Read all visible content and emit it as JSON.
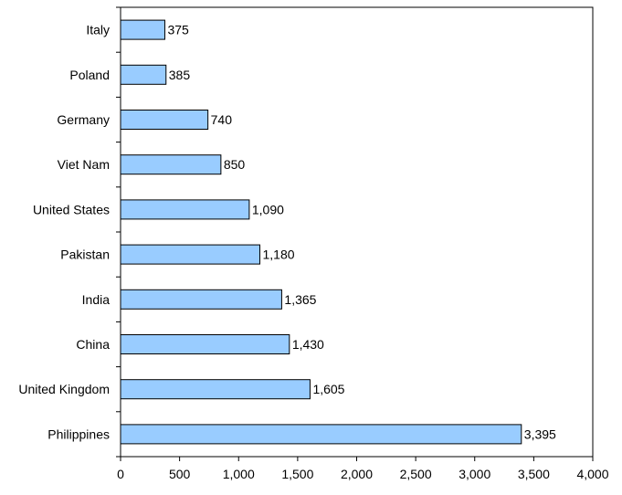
{
  "chart_data": {
    "type": "bar",
    "orientation": "horizontal",
    "categories": [
      "Italy",
      "Poland",
      "Germany",
      "Viet Nam",
      "United States",
      "Pakistan",
      "India",
      "China",
      "United Kingdom",
      "Philippines"
    ],
    "values": [
      375,
      385,
      740,
      850,
      1090,
      1180,
      1365,
      1430,
      1605,
      3395
    ],
    "value_labels": [
      "375",
      "385",
      "740",
      "850",
      "1,090",
      "1,180",
      "1,365",
      "1,430",
      "1,605",
      "3,395"
    ],
    "x_ticks": [
      0,
      500,
      1000,
      1500,
      2000,
      2500,
      3000,
      3500,
      4000
    ],
    "x_tick_labels": [
      "0",
      "500",
      "1,000",
      "1,500",
      "2,000",
      "2,500",
      "3,000",
      "3,500",
      "4,000"
    ],
    "xlim": [
      0,
      4000
    ],
    "title": "",
    "xlabel": "",
    "ylabel": "",
    "grid": false,
    "legend": "none",
    "bar_color": "#99CCFF",
    "bar_edge_color": "#000000"
  }
}
